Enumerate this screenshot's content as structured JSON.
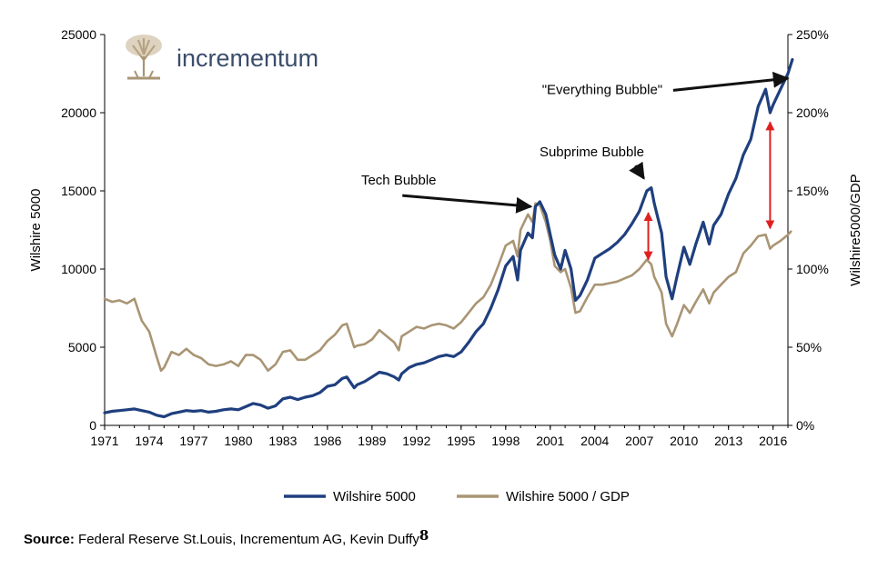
{
  "logo": {
    "text": "incrementum"
  },
  "source": {
    "label": "Source:",
    "text": "Federal Reserve St.Louis, Incrementum AG, Kevin Duffy",
    "footnote": "8"
  },
  "colors": {
    "wilshire": "#1f3f7e",
    "ratio": "#a99574",
    "arrow": "#111111",
    "red_arrow": "#e02020"
  },
  "chart_data": {
    "type": "line",
    "xlabel": "",
    "ylabel_left": "Wilshire 5000",
    "ylabel_right": "Wilshire5000/GDP",
    "xlim": [
      1971,
      2017
    ],
    "ylim_left": [
      0,
      25000
    ],
    "ylim_right": [
      0,
      250
    ],
    "x_ticks": [
      "1971",
      "1974",
      "1977",
      "1980",
      "1983",
      "1986",
      "1989",
      "1992",
      "1995",
      "1998",
      "2001",
      "2004",
      "2007",
      "2010",
      "2013",
      "2016"
    ],
    "y_ticks_left": [
      "0",
      "5000",
      "10000",
      "15000",
      "20000",
      "25000"
    ],
    "y_ticks_right": [
      "0%",
      "50%",
      "100%",
      "150%",
      "200%",
      "250%"
    ],
    "grid": false,
    "legend_position": "bottom",
    "series": [
      {
        "name": "Wilshire 5000",
        "axis": "left",
        "color": "#1f3f7e",
        "points": [
          [
            1971,
            800
          ],
          [
            1971.5,
            900
          ],
          [
            1972,
            950
          ],
          [
            1972.5,
            1000
          ],
          [
            1973,
            1050
          ],
          [
            1973.5,
            950
          ],
          [
            1974,
            850
          ],
          [
            1974.5,
            650
          ],
          [
            1975,
            550
          ],
          [
            1975.5,
            750
          ],
          [
            1976,
            850
          ],
          [
            1976.5,
            950
          ],
          [
            1977,
            900
          ],
          [
            1977.5,
            950
          ],
          [
            1978,
            850
          ],
          [
            1978.5,
            900
          ],
          [
            1979,
            1000
          ],
          [
            1979.5,
            1050
          ],
          [
            1980,
            1000
          ],
          [
            1980.5,
            1200
          ],
          [
            1981,
            1400
          ],
          [
            1981.5,
            1300
          ],
          [
            1982,
            1100
          ],
          [
            1982.5,
            1250
          ],
          [
            1983,
            1700
          ],
          [
            1983.5,
            1800
          ],
          [
            1984,
            1650
          ],
          [
            1984.5,
            1800
          ],
          [
            1985,
            1900
          ],
          [
            1985.5,
            2100
          ],
          [
            1986,
            2500
          ],
          [
            1986.5,
            2600
          ],
          [
            1987,
            3000
          ],
          [
            1987.3,
            3100
          ],
          [
            1987.8,
            2400
          ],
          [
            1988,
            2600
          ],
          [
            1988.5,
            2800
          ],
          [
            1989,
            3100
          ],
          [
            1989.5,
            3400
          ],
          [
            1990,
            3300
          ],
          [
            1990.5,
            3100
          ],
          [
            1990.8,
            2900
          ],
          [
            1991,
            3300
          ],
          [
            1991.5,
            3700
          ],
          [
            1992,
            3900
          ],
          [
            1992.5,
            4000
          ],
          [
            1993,
            4200
          ],
          [
            1993.5,
            4400
          ],
          [
            1994,
            4500
          ],
          [
            1994.5,
            4400
          ],
          [
            1995,
            4700
          ],
          [
            1995.5,
            5300
          ],
          [
            1996,
            6000
          ],
          [
            1996.5,
            6500
          ],
          [
            1997,
            7500
          ],
          [
            1997.5,
            8700
          ],
          [
            1998,
            10200
          ],
          [
            1998.5,
            10800
          ],
          [
            1998.8,
            9300
          ],
          [
            1999,
            11200
          ],
          [
            1999.5,
            12300
          ],
          [
            1999.8,
            12000
          ],
          [
            2000,
            14000
          ],
          [
            2000.3,
            14300
          ],
          [
            2000.7,
            13500
          ],
          [
            2001,
            12200
          ],
          [
            2001.3,
            10900
          ],
          [
            2001.7,
            10000
          ],
          [
            2002,
            11200
          ],
          [
            2002.4,
            10000
          ],
          [
            2002.7,
            8000
          ],
          [
            2003,
            8300
          ],
          [
            2003.5,
            9300
          ],
          [
            2004,
            10700
          ],
          [
            2004.5,
            11000
          ],
          [
            2005,
            11300
          ],
          [
            2005.5,
            11700
          ],
          [
            2006,
            12200
          ],
          [
            2006.5,
            12900
          ],
          [
            2007,
            13700
          ],
          [
            2007.5,
            15000
          ],
          [
            2007.8,
            15200
          ],
          [
            2008,
            14200
          ],
          [
            2008.5,
            12300
          ],
          [
            2008.8,
            9500
          ],
          [
            2009.2,
            8100
          ],
          [
            2009.5,
            9400
          ],
          [
            2010,
            11400
          ],
          [
            2010.4,
            10300
          ],
          [
            2010.8,
            11600
          ],
          [
            2011.3,
            13000
          ],
          [
            2011.7,
            11600
          ],
          [
            2012,
            12800
          ],
          [
            2012.5,
            13500
          ],
          [
            2013,
            14800
          ],
          [
            2013.5,
            15800
          ],
          [
            2014,
            17300
          ],
          [
            2014.5,
            18300
          ],
          [
            2015,
            20400
          ],
          [
            2015.5,
            21500
          ],
          [
            2015.8,
            20000
          ],
          [
            2016,
            20500
          ],
          [
            2016.5,
            21500
          ],
          [
            2017,
            22500
          ],
          [
            2017.3,
            23400
          ]
        ]
      },
      {
        "name": "Wilshire 5000 / GDP",
        "axis": "right",
        "color": "#a99574",
        "points": [
          [
            1971,
            81
          ],
          [
            1971.5,
            79
          ],
          [
            1972,
            80
          ],
          [
            1972.5,
            78
          ],
          [
            1973,
            81
          ],
          [
            1973.5,
            67
          ],
          [
            1974,
            60
          ],
          [
            1974.5,
            44
          ],
          [
            1974.8,
            35
          ],
          [
            1975,
            37
          ],
          [
            1975.5,
            47
          ],
          [
            1976,
            45
          ],
          [
            1976.5,
            49
          ],
          [
            1977,
            45
          ],
          [
            1977.5,
            43
          ],
          [
            1978,
            39
          ],
          [
            1978.5,
            38
          ],
          [
            1979,
            39
          ],
          [
            1979.5,
            41
          ],
          [
            1980,
            38
          ],
          [
            1980.5,
            45
          ],
          [
            1981,
            45
          ],
          [
            1981.5,
            42
          ],
          [
            1982,
            35
          ],
          [
            1982.5,
            39
          ],
          [
            1983,
            47
          ],
          [
            1983.5,
            48
          ],
          [
            1984,
            42
          ],
          [
            1984.5,
            42
          ],
          [
            1985,
            45
          ],
          [
            1985.5,
            48
          ],
          [
            1986,
            54
          ],
          [
            1986.5,
            58
          ],
          [
            1987,
            64
          ],
          [
            1987.3,
            65
          ],
          [
            1987.8,
            50
          ],
          [
            1988,
            51
          ],
          [
            1988.5,
            52
          ],
          [
            1989,
            55
          ],
          [
            1989.5,
            61
          ],
          [
            1990,
            57
          ],
          [
            1990.5,
            53
          ],
          [
            1990.8,
            48
          ],
          [
            1991,
            57
          ],
          [
            1991.5,
            60
          ],
          [
            1992,
            63
          ],
          [
            1992.5,
            62
          ],
          [
            1993,
            64
          ],
          [
            1993.5,
            65
          ],
          [
            1994,
            64
          ],
          [
            1994.5,
            62
          ],
          [
            1995,
            66
          ],
          [
            1995.5,
            72
          ],
          [
            1996,
            78
          ],
          [
            1996.5,
            82
          ],
          [
            1997,
            90
          ],
          [
            1997.5,
            102
          ],
          [
            1998,
            115
          ],
          [
            1998.5,
            118
          ],
          [
            1998.8,
            108
          ],
          [
            1999,
            125
          ],
          [
            1999.5,
            135
          ],
          [
            1999.8,
            130
          ],
          [
            2000,
            142
          ],
          [
            2000.3,
            141
          ],
          [
            2000.7,
            130
          ],
          [
            2001,
            118
          ],
          [
            2001.3,
            102
          ],
          [
            2001.7,
            98
          ],
          [
            2002,
            100
          ],
          [
            2002.4,
            88
          ],
          [
            2002.7,
            72
          ],
          [
            2003,
            73
          ],
          [
            2003.5,
            82
          ],
          [
            2004,
            90
          ],
          [
            2004.5,
            90
          ],
          [
            2005,
            91
          ],
          [
            2005.5,
            92
          ],
          [
            2006,
            94
          ],
          [
            2006.5,
            96
          ],
          [
            2007,
            100
          ],
          [
            2007.5,
            106
          ],
          [
            2007.8,
            103
          ],
          [
            2008,
            95
          ],
          [
            2008.5,
            85
          ],
          [
            2008.8,
            65
          ],
          [
            2009.2,
            57
          ],
          [
            2009.5,
            64
          ],
          [
            2010,
            77
          ],
          [
            2010.4,
            72
          ],
          [
            2010.8,
            79
          ],
          [
            2011.3,
            87
          ],
          [
            2011.7,
            78
          ],
          [
            2012,
            85
          ],
          [
            2012.5,
            90
          ],
          [
            2013,
            95
          ],
          [
            2013.5,
            98
          ],
          [
            2014,
            110
          ],
          [
            2014.5,
            115
          ],
          [
            2015,
            121
          ],
          [
            2015.5,
            122
          ],
          [
            2015.8,
            113
          ],
          [
            2016,
            115
          ],
          [
            2016.5,
            118
          ],
          [
            2017,
            122
          ],
          [
            2017.2,
            124
          ]
        ]
      }
    ],
    "annotations": [
      {
        "text": "Tech Bubble",
        "x": 1999.7,
        "y_left": 14000,
        "text_x": 1990.8,
        "text_y_left": 15400
      },
      {
        "text": "Subprime Bubble",
        "x": 2007.3,
        "y_left": 15800,
        "text_x": 2003.8,
        "text_y_left": 17200
      },
      {
        "text": "\"Everything Bubble\"",
        "x": 2017.0,
        "y_left": 22200,
        "text_x": 2004.5,
        "text_y_left": 21200
      }
    ],
    "gap_markers": [
      {
        "x": 2007.6,
        "y_left_top": 13600,
        "y_left_bottom": 10600
      },
      {
        "x": 2015.8,
        "y_left_top": 19400,
        "y_left_bottom": 12600
      }
    ]
  }
}
